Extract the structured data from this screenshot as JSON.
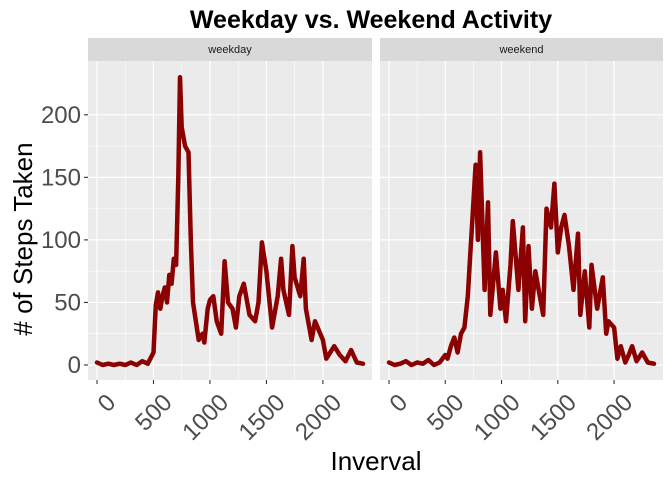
{
  "chart_data": {
    "type": "line",
    "title": "Weekday vs. Weekend Activity",
    "xlabel": "Inverval",
    "ylabel": "# of Steps Taken",
    "xlim": [
      -80,
      2435
    ],
    "ylim": [
      -12,
      243
    ],
    "x_ticks": [
      0,
      500,
      1000,
      1500,
      2000
    ],
    "y_ticks": [
      0,
      50,
      100,
      150,
      200
    ],
    "grid": true,
    "line_color": "#8B0000",
    "panel_bg": "#EBEBEB",
    "strip_bg": "#D9D9D9",
    "panels": [
      {
        "name": "weekday",
        "x": [
          0,
          50,
          100,
          150,
          200,
          250,
          300,
          350,
          400,
          450,
          500,
          520,
          540,
          560,
          580,
          600,
          620,
          640,
          660,
          680,
          700,
          720,
          735,
          750,
          780,
          810,
          830,
          850,
          900,
          935,
          950,
          980,
          1000,
          1030,
          1060,
          1100,
          1130,
          1160,
          1200,
          1230,
          1260,
          1300,
          1330,
          1350,
          1400,
          1430,
          1460,
          1500,
          1550,
          1600,
          1630,
          1650,
          1700,
          1730,
          1750,
          1800,
          1830,
          1850,
          1900,
          1930,
          2000,
          2030,
          2100,
          2150,
          2200,
          2250,
          2300,
          2355
        ],
        "y": [
          2,
          0,
          1,
          0,
          1,
          0,
          2,
          0,
          3,
          1,
          10,
          48,
          58,
          45,
          55,
          62,
          50,
          72,
          65,
          85,
          80,
          150,
          230,
          190,
          175,
          170,
          100,
          50,
          20,
          25,
          18,
          45,
          52,
          55,
          35,
          25,
          83,
          50,
          45,
          30,
          55,
          65,
          50,
          40,
          35,
          50,
          98,
          75,
          30,
          55,
          85,
          60,
          40,
          95,
          70,
          55,
          85,
          45,
          20,
          35,
          20,
          5,
          15,
          8,
          3,
          12,
          2,
          1
        ]
      },
      {
        "name": "weekend",
        "x": [
          0,
          50,
          100,
          150,
          200,
          250,
          300,
          350,
          400,
          450,
          500,
          520,
          550,
          580,
          610,
          640,
          670,
          700,
          720,
          740,
          770,
          790,
          810,
          850,
          880,
          900,
          950,
          990,
          1010,
          1040,
          1080,
          1100,
          1150,
          1190,
          1210,
          1240,
          1270,
          1300,
          1340,
          1370,
          1400,
          1440,
          1470,
          1500,
          1530,
          1560,
          1600,
          1640,
          1680,
          1700,
          1740,
          1780,
          1800,
          1850,
          1900,
          1930,
          1950,
          2000,
          2030,
          2060,
          2100,
          2130,
          2160,
          2200,
          2250,
          2300,
          2355
        ],
        "y": [
          2,
          0,
          1,
          3,
          0,
          2,
          1,
          4,
          0,
          2,
          8,
          5,
          15,
          22,
          10,
          25,
          30,
          55,
          85,
          115,
          160,
          100,
          170,
          60,
          130,
          40,
          90,
          45,
          60,
          35,
          80,
          115,
          60,
          110,
          35,
          95,
          45,
          75,
          55,
          40,
          125,
          110,
          145,
          90,
          110,
          120,
          95,
          60,
          105,
          40,
          75,
          30,
          80,
          45,
          70,
          25,
          35,
          30,
          5,
          15,
          2,
          8,
          15,
          3,
          10,
          2,
          1
        ]
      }
    ]
  }
}
